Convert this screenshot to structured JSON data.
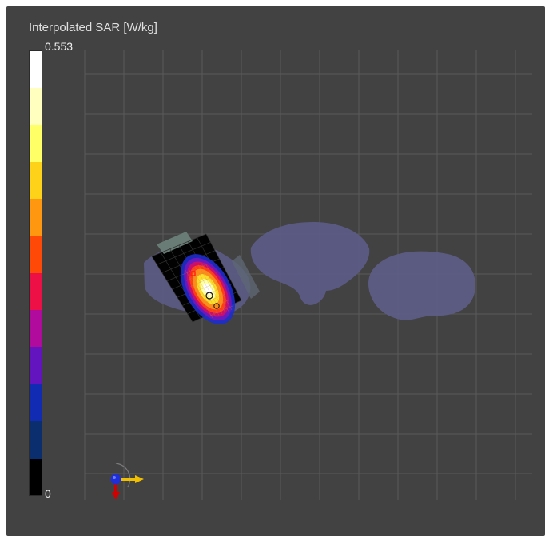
{
  "viewer": {
    "colorbar": {
      "title": "Interpolated SAR [W/kg]",
      "max_label": "0.553",
      "min_label": "0",
      "swatches": [
        "#ffffff",
        "#ffffc0",
        "#ffff66",
        "#ffd21a",
        "#ff9810",
        "#ff4a07",
        "#ec1046",
        "#b10b9e",
        "#6314bf",
        "#122bb3",
        "#0b2e6e",
        "#000000"
      ]
    },
    "scene": {
      "background": "#424242",
      "grid_color": "#5a5a5a",
      "tissue_color": "#5c5c86",
      "probe_color": "#000000",
      "probe_handle_color": "#6b7f79",
      "hotspot_colors": [
        "#ffffff",
        "#ffffaa",
        "#ffde2b",
        "#ff8f1a",
        "#ff3f16",
        "#d00f66",
        "#7118bd",
        "#1d2ecb"
      ]
    },
    "axis_gizmo": {
      "x_axis_color": "#f0c000",
      "y_axis_color": "#d40000",
      "z_axis_color": "#1e2fd8",
      "x_icon": "x-axis-arrow-icon",
      "y_icon": "y-axis-arrow-icon",
      "z_icon": "z-axis-sphere-icon"
    }
  }
}
